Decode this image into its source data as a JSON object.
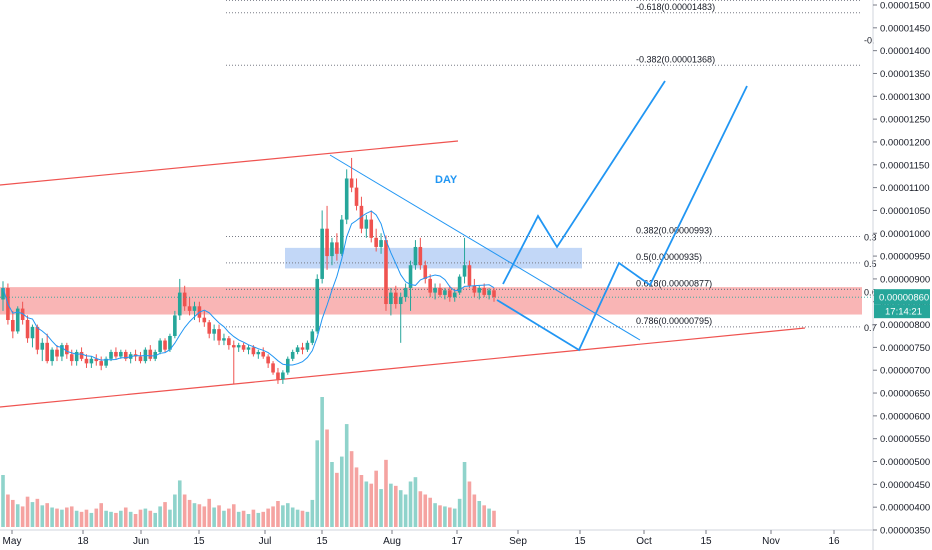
{
  "chart_data": {
    "type": "candlestick",
    "timeframe_note": "DAY",
    "y_axis": {
      "ticks": [
        "0.00001500",
        "0.00001450",
        "0.00001400",
        "0.00001350",
        "0.00001300",
        "0.00001250",
        "0.00001200",
        "0.00001150",
        "0.00001100",
        "0.00001050",
        "0.00001000",
        "0.00000950",
        "0.00000900",
        "0.00000850",
        "0.00000800",
        "0.00000750",
        "0.00000700",
        "0.00000650",
        "0.00000600",
        "0.00000550",
        "0.00000500",
        "0.00000450",
        "0.00000400",
        "0.00000350"
      ],
      "ylim": [
        3.4e-06,
        1.51e-05
      ]
    },
    "x_axis": {
      "ticks": [
        "May",
        "18",
        "Jun",
        "15",
        "Jul",
        "15",
        "Aug",
        "17",
        "Sep",
        "15",
        "Oct",
        "15",
        "Nov",
        "16"
      ]
    },
    "last_price": {
      "value": "0.00000860",
      "countdown": "17:14:21",
      "color": "#26a69a"
    },
    "fib_levels": [
      {
        "label": "-0.618(0.00001483)",
        "value": 1.483e-05
      },
      {
        "label": "-0.382(0.00001368)",
        "value": 1.368e-05
      },
      {
        "label": "0.382(0.00000993)",
        "value": 9.93e-06
      },
      {
        "label": "0.5(0.00000935)",
        "value": 9.35e-06
      },
      {
        "label": "0.618(0.00000877)",
        "value": 8.77e-06
      },
      {
        "label": "0.786(0.00000795)",
        "value": 7.95e-06
      }
    ],
    "fib_right_labels": [
      "-0.",
      "0.3",
      "0.5",
      "0.6",
      "0.7"
    ],
    "zones": [
      {
        "name": "support-zone",
        "from": 8.22e-06,
        "to": 8.82e-06,
        "color": "#f8a8a8"
      },
      {
        "name": "resistance-zone",
        "from": 9.23e-06,
        "to": 9.68e-06,
        "color": "#b3cdf5"
      }
    ],
    "candles": [
      {
        "o": 8.55,
        "h": 8.95,
        "l": 8.3,
        "c": 8.8,
        "v": 480
      },
      {
        "o": 8.8,
        "h": 8.9,
        "l": 8.0,
        "c": 8.1,
        "v": 300
      },
      {
        "o": 8.1,
        "h": 8.3,
        "l": 7.7,
        "c": 7.85,
        "v": 250
      },
      {
        "o": 7.85,
        "h": 8.4,
        "l": 7.8,
        "c": 8.35,
        "v": 210
      },
      {
        "o": 8.35,
        "h": 8.5,
        "l": 8.0,
        "c": 8.1,
        "v": 190
      },
      {
        "o": 8.1,
        "h": 8.2,
        "l": 7.6,
        "c": 7.7,
        "v": 280
      },
      {
        "o": 7.7,
        "h": 8.0,
        "l": 7.5,
        "c": 7.95,
        "v": 230
      },
      {
        "o": 7.95,
        "h": 8.0,
        "l": 7.35,
        "c": 7.45,
        "v": 260
      },
      {
        "o": 7.45,
        "h": 7.7,
        "l": 7.2,
        "c": 7.6,
        "v": 200
      },
      {
        "o": 7.6,
        "h": 7.8,
        "l": 7.15,
        "c": 7.2,
        "v": 220
      },
      {
        "o": 7.2,
        "h": 7.5,
        "l": 7.1,
        "c": 7.45,
        "v": 180
      },
      {
        "o": 7.45,
        "h": 7.55,
        "l": 7.2,
        "c": 7.3,
        "v": 170
      },
      {
        "o": 7.3,
        "h": 7.6,
        "l": 7.2,
        "c": 7.55,
        "v": 160
      },
      {
        "o": 7.55,
        "h": 7.6,
        "l": 7.25,
        "c": 7.35,
        "v": 180
      },
      {
        "o": 7.35,
        "h": 7.45,
        "l": 7.1,
        "c": 7.2,
        "v": 190
      },
      {
        "o": 7.2,
        "h": 7.45,
        "l": 7.1,
        "c": 7.4,
        "v": 150
      },
      {
        "o": 7.4,
        "h": 7.5,
        "l": 7.2,
        "c": 7.25,
        "v": 140
      },
      {
        "o": 7.25,
        "h": 7.35,
        "l": 7.05,
        "c": 7.15,
        "v": 160
      },
      {
        "o": 7.15,
        "h": 7.3,
        "l": 7.05,
        "c": 7.25,
        "v": 130
      },
      {
        "o": 7.25,
        "h": 7.35,
        "l": 7.1,
        "c": 7.2,
        "v": 170
      },
      {
        "o": 7.2,
        "h": 7.3,
        "l": 7.0,
        "c": 7.1,
        "v": 220
      },
      {
        "o": 7.1,
        "h": 7.3,
        "l": 7.05,
        "c": 7.25,
        "v": 150
      },
      {
        "o": 7.25,
        "h": 7.45,
        "l": 7.2,
        "c": 7.4,
        "v": 140
      },
      {
        "o": 7.4,
        "h": 7.5,
        "l": 7.25,
        "c": 7.3,
        "v": 130
      },
      {
        "o": 7.3,
        "h": 7.45,
        "l": 7.25,
        "c": 7.4,
        "v": 150
      },
      {
        "o": 7.4,
        "h": 7.45,
        "l": 7.2,
        "c": 7.25,
        "v": 180
      },
      {
        "o": 7.25,
        "h": 7.4,
        "l": 7.15,
        "c": 7.35,
        "v": 140
      },
      {
        "o": 7.35,
        "h": 7.45,
        "l": 7.2,
        "c": 7.3,
        "v": 120
      },
      {
        "o": 7.3,
        "h": 7.4,
        "l": 7.15,
        "c": 7.2,
        "v": 160
      },
      {
        "o": 7.2,
        "h": 7.5,
        "l": 7.15,
        "c": 7.45,
        "v": 170
      },
      {
        "o": 7.45,
        "h": 7.55,
        "l": 7.2,
        "c": 7.25,
        "v": 150
      },
      {
        "o": 7.25,
        "h": 7.45,
        "l": 7.2,
        "c": 7.4,
        "v": 130
      },
      {
        "o": 7.4,
        "h": 7.7,
        "l": 7.35,
        "c": 7.65,
        "v": 190
      },
      {
        "o": 7.65,
        "h": 7.7,
        "l": 7.4,
        "c": 7.45,
        "v": 230
      },
      {
        "o": 7.45,
        "h": 7.8,
        "l": 7.4,
        "c": 7.75,
        "v": 160
      },
      {
        "o": 7.75,
        "h": 8.3,
        "l": 7.7,
        "c": 8.2,
        "v": 300
      },
      {
        "o": 8.2,
        "h": 9.0,
        "l": 8.1,
        "c": 8.7,
        "v": 430
      },
      {
        "o": 8.7,
        "h": 8.85,
        "l": 8.3,
        "c": 8.4,
        "v": 300
      },
      {
        "o": 8.4,
        "h": 8.6,
        "l": 8.2,
        "c": 8.3,
        "v": 250
      },
      {
        "o": 8.3,
        "h": 8.5,
        "l": 8.1,
        "c": 8.4,
        "v": 220
      },
      {
        "o": 8.4,
        "h": 8.5,
        "l": 8.05,
        "c": 8.15,
        "v": 210
      },
      {
        "o": 8.15,
        "h": 8.3,
        "l": 7.95,
        "c": 8.05,
        "v": 190
      },
      {
        "o": 8.05,
        "h": 8.1,
        "l": 7.7,
        "c": 7.8,
        "v": 260
      },
      {
        "o": 7.8,
        "h": 8.0,
        "l": 7.65,
        "c": 7.9,
        "v": 180
      },
      {
        "o": 7.9,
        "h": 8.0,
        "l": 7.55,
        "c": 7.65,
        "v": 200
      },
      {
        "o": 7.65,
        "h": 7.8,
        "l": 7.55,
        "c": 7.7,
        "v": 150
      },
      {
        "o": 7.7,
        "h": 7.75,
        "l": 7.45,
        "c": 7.55,
        "v": 170
      },
      {
        "o": 7.55,
        "h": 7.65,
        "l": 6.7,
        "c": 7.5,
        "v": 210
      },
      {
        "o": 7.5,
        "h": 7.6,
        "l": 7.4,
        "c": 7.55,
        "v": 140
      },
      {
        "o": 7.55,
        "h": 7.6,
        "l": 7.4,
        "c": 7.45,
        "v": 150
      },
      {
        "o": 7.45,
        "h": 7.55,
        "l": 7.35,
        "c": 7.5,
        "v": 120
      },
      {
        "o": 7.5,
        "h": 7.55,
        "l": 7.3,
        "c": 7.35,
        "v": 160
      },
      {
        "o": 7.35,
        "h": 7.45,
        "l": 7.25,
        "c": 7.4,
        "v": 130
      },
      {
        "o": 7.4,
        "h": 7.5,
        "l": 7.25,
        "c": 7.3,
        "v": 140
      },
      {
        "o": 7.3,
        "h": 7.35,
        "l": 7.05,
        "c": 7.15,
        "v": 170
      },
      {
        "o": 7.15,
        "h": 7.2,
        "l": 6.9,
        "c": 6.95,
        "v": 190
      },
      {
        "o": 6.95,
        "h": 7.05,
        "l": 6.7,
        "c": 6.8,
        "v": 240
      },
      {
        "o": 6.8,
        "h": 7.0,
        "l": 6.7,
        "c": 6.95,
        "v": 200
      },
      {
        "o": 6.95,
        "h": 7.3,
        "l": 6.9,
        "c": 7.25,
        "v": 220
      },
      {
        "o": 7.25,
        "h": 7.45,
        "l": 7.2,
        "c": 7.4,
        "v": 180
      },
      {
        "o": 7.4,
        "h": 7.55,
        "l": 7.35,
        "c": 7.5,
        "v": 160
      },
      {
        "o": 7.5,
        "h": 7.6,
        "l": 7.35,
        "c": 7.45,
        "v": 150
      },
      {
        "o": 7.45,
        "h": 7.65,
        "l": 7.4,
        "c": 7.6,
        "v": 140
      },
      {
        "o": 7.6,
        "h": 7.9,
        "l": 7.55,
        "c": 7.85,
        "v": 250
      },
      {
        "o": 7.85,
        "h": 9.1,
        "l": 7.8,
        "c": 9.0,
        "v": 800
      },
      {
        "o": 9.0,
        "h": 10.5,
        "l": 8.9,
        "c": 10.1,
        "v": 1200
      },
      {
        "o": 10.1,
        "h": 10.6,
        "l": 9.2,
        "c": 9.5,
        "v": 900
      },
      {
        "o": 9.5,
        "h": 9.9,
        "l": 9.3,
        "c": 9.8,
        "v": 600
      },
      {
        "o": 9.8,
        "h": 10.0,
        "l": 9.4,
        "c": 9.55,
        "v": 500
      },
      {
        "o": 9.55,
        "h": 10.4,
        "l": 9.5,
        "c": 10.3,
        "v": 650
      },
      {
        "o": 10.3,
        "h": 11.4,
        "l": 10.2,
        "c": 11.2,
        "v": 950
      },
      {
        "o": 11.2,
        "h": 11.65,
        "l": 10.9,
        "c": 11.0,
        "v": 700
      },
      {
        "o": 11.0,
        "h": 11.2,
        "l": 10.5,
        "c": 10.6,
        "v": 550
      },
      {
        "o": 10.6,
        "h": 10.8,
        "l": 10.0,
        "c": 10.1,
        "v": 480
      },
      {
        "o": 10.1,
        "h": 10.4,
        "l": 9.9,
        "c": 10.3,
        "v": 420
      },
      {
        "o": 10.3,
        "h": 10.5,
        "l": 9.8,
        "c": 9.9,
        "v": 400
      },
      {
        "o": 9.9,
        "h": 10.1,
        "l": 9.6,
        "c": 9.7,
        "v": 520
      },
      {
        "o": 9.7,
        "h": 10.0,
        "l": 9.55,
        "c": 9.85,
        "v": 350
      },
      {
        "o": 9.85,
        "h": 9.95,
        "l": 8.3,
        "c": 8.45,
        "v": 620
      },
      {
        "o": 8.45,
        "h": 8.8,
        "l": 8.2,
        "c": 8.7,
        "v": 400
      },
      {
        "o": 8.7,
        "h": 8.85,
        "l": 8.35,
        "c": 8.45,
        "v": 380
      },
      {
        "o": 8.45,
        "h": 8.7,
        "l": 7.6,
        "c": 8.6,
        "v": 340
      },
      {
        "o": 8.6,
        "h": 8.9,
        "l": 8.5,
        "c": 8.8,
        "v": 300
      },
      {
        "o": 8.8,
        "h": 9.4,
        "l": 8.3,
        "c": 9.3,
        "v": 420
      },
      {
        "o": 9.3,
        "h": 9.85,
        "l": 9.2,
        "c": 9.7,
        "v": 460
      },
      {
        "o": 9.7,
        "h": 9.9,
        "l": 9.2,
        "c": 9.3,
        "v": 330
      },
      {
        "o": 9.3,
        "h": 9.4,
        "l": 8.9,
        "c": 9.0,
        "v": 300
      },
      {
        "o": 9.0,
        "h": 9.1,
        "l": 8.6,
        "c": 8.7,
        "v": 270
      },
      {
        "o": 8.7,
        "h": 8.9,
        "l": 8.55,
        "c": 8.8,
        "v": 220
      },
      {
        "o": 8.8,
        "h": 8.9,
        "l": 8.6,
        "c": 8.65,
        "v": 200
      },
      {
        "o": 8.65,
        "h": 8.8,
        "l": 8.55,
        "c": 8.75,
        "v": 190
      },
      {
        "o": 8.75,
        "h": 8.85,
        "l": 8.5,
        "c": 8.6,
        "v": 180
      },
      {
        "o": 8.6,
        "h": 8.75,
        "l": 8.5,
        "c": 8.7,
        "v": 170
      },
      {
        "o": 8.7,
        "h": 9.1,
        "l": 8.65,
        "c": 9.05,
        "v": 260
      },
      {
        "o": 9.05,
        "h": 9.9,
        "l": 8.9,
        "c": 9.3,
        "v": 600
      },
      {
        "o": 9.3,
        "h": 9.4,
        "l": 8.8,
        "c": 8.85,
        "v": 420
      },
      {
        "o": 8.85,
        "h": 9.0,
        "l": 8.6,
        "c": 8.7,
        "v": 300
      },
      {
        "o": 8.7,
        "h": 8.85,
        "l": 8.55,
        "c": 8.8,
        "v": 240
      },
      {
        "o": 8.8,
        "h": 8.9,
        "l": 8.6,
        "c": 8.65,
        "v": 200
      },
      {
        "o": 8.65,
        "h": 8.8,
        "l": 8.55,
        "c": 8.75,
        "v": 170
      },
      {
        "o": 8.75,
        "h": 8.8,
        "l": 8.5,
        "c": 8.6,
        "v": 150
      }
    ],
    "candle_scale": 1e-06
  }
}
